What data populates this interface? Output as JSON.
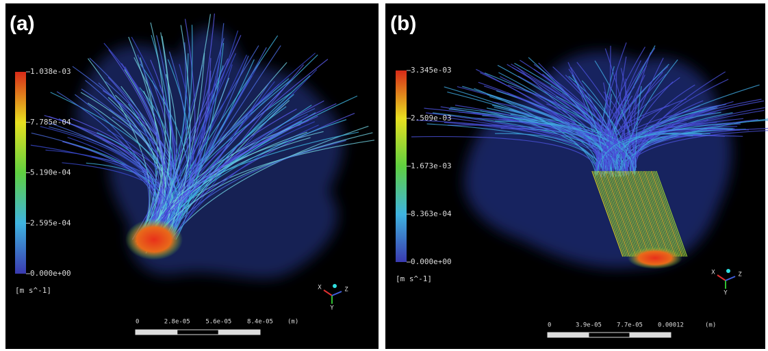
{
  "panels": [
    {
      "label": "(a)",
      "colorbar": {
        "ticks": [
          "1.038e-03",
          "7.785e-04",
          "5.190e-04",
          "2.595e-04",
          "0.000e+00"
        ],
        "unit": "[m s^-1]"
      },
      "scale_bar": {
        "ticks": [
          "0",
          "2.8e-05",
          "5.6e-05",
          "8.4e-05"
        ],
        "unit": "(m)"
      },
      "axes": [
        "X",
        "Y",
        "Z"
      ]
    },
    {
      "label": "(b)",
      "colorbar": {
        "ticks": [
          "3.345e-03",
          "2.509e-03",
          "1.673e-03",
          "8.363e-04",
          "0.000e+00"
        ],
        "unit": "[m s^-1]"
      },
      "scale_bar": {
        "ticks": [
          "0",
          "3.9e-05",
          "7.7e-05",
          "0.00012"
        ],
        "unit": "(m)"
      },
      "axes": [
        "X",
        "Y",
        "Z"
      ]
    }
  ]
}
